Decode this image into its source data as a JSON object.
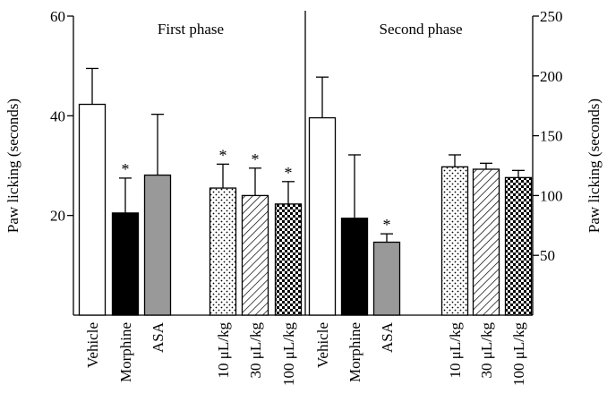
{
  "chart_data": [
    {
      "type": "bar",
      "title": "First phase",
      "ylabel": "Paw licking (seconds)",
      "ylim": [
        0,
        60
      ],
      "yticks": [
        20,
        40,
        60
      ],
      "categories": [
        {
          "label": "Vehicle",
          "unit": ""
        },
        {
          "label": "Morphine",
          "unit": ""
        },
        {
          "label": "ASA",
          "unit": ""
        },
        {
          "label": "10",
          "unit": "μL/kg"
        },
        {
          "label": "30",
          "unit": "μL/kg"
        },
        {
          "label": "100",
          "unit": "μL/kg"
        }
      ],
      "values": [
        42.3,
        20.5,
        28.1,
        25.5,
        24.0,
        22.3
      ],
      "errors": [
        7.2,
        7.0,
        12.2,
        4.8,
        5.5,
        4.5
      ],
      "significant": [
        false,
        true,
        false,
        true,
        true,
        true
      ],
      "fills": [
        "white",
        "black",
        "gray",
        "dots",
        "hatch",
        "checker"
      ]
    },
    {
      "type": "bar",
      "title": "Second phase",
      "ylabel": "Paw licking (seconds)",
      "ylim": [
        0,
        250
      ],
      "yticks": [
        50,
        100,
        150,
        200,
        250
      ],
      "categories": [
        {
          "label": "Vehicle",
          "unit": ""
        },
        {
          "label": "Morphine",
          "unit": ""
        },
        {
          "label": "ASA",
          "unit": ""
        },
        {
          "label": "10",
          "unit": "μL/kg"
        },
        {
          "label": "30",
          "unit": "μL/kg"
        },
        {
          "label": "100",
          "unit": "μL/kg"
        }
      ],
      "values": [
        165,
        81,
        61,
        124,
        122,
        115
      ],
      "errors": [
        34,
        53,
        7,
        10,
        5,
        6
      ],
      "significant": [
        false,
        false,
        true,
        false,
        false,
        false
      ],
      "fills": [
        "white",
        "black",
        "gray",
        "dots",
        "hatch",
        "checker"
      ]
    }
  ],
  "significance_marker": "*",
  "colors": {
    "axis": "#000000",
    "black_bar": "#000000",
    "gray_bar": "#999999",
    "white_bar": "#ffffff"
  }
}
